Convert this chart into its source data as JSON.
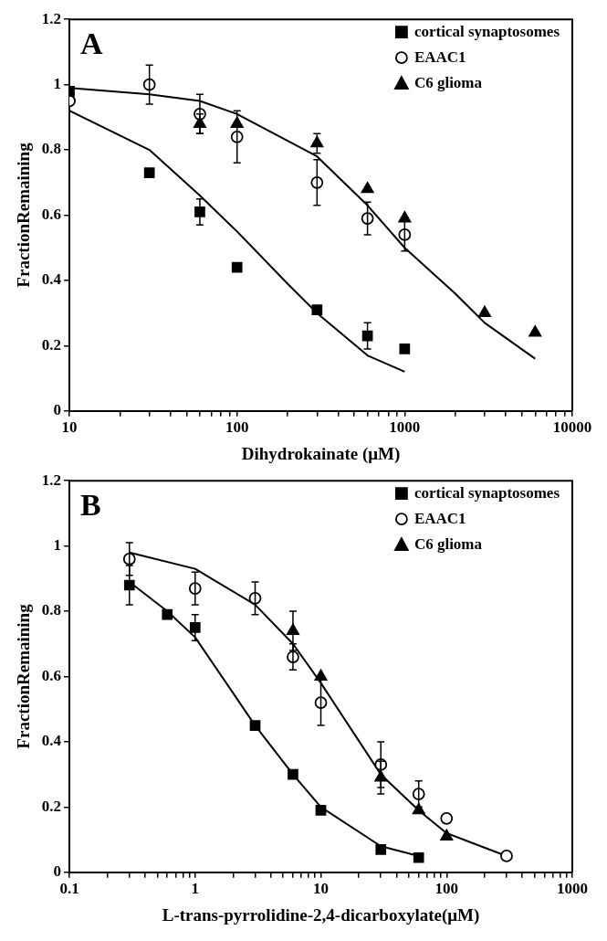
{
  "chart_data": [
    {
      "type": "scatter",
      "xlabel": "Dihydrokainate (μM)",
      "ylabel": "FractionRemaining",
      "annotations": [
        "A"
      ],
      "log": "x",
      "grid": false,
      "legend": "top right",
      "xlim": [
        10,
        10000
      ],
      "ylim": [
        0,
        1.2
      ],
      "xticks": [
        10,
        {
          "value": 20,
          "label": null
        },
        {
          "value": 30,
          "label": null
        },
        {
          "value": 40,
          "label": null
        },
        {
          "value": 50,
          "label": null
        },
        {
          "value": 60,
          "label": null
        },
        {
          "value": 70,
          "label": null
        },
        {
          "value": 80,
          "label": null
        },
        {
          "value": 90,
          "label": null
        },
        100,
        {
          "value": 200,
          "label": null
        },
        {
          "value": 300,
          "label": null
        },
        {
          "value": 400,
          "label": null
        },
        {
          "value": 500,
          "label": null
        },
        {
          "value": 600,
          "label": null
        },
        {
          "value": 700,
          "label": null
        },
        {
          "value": 800,
          "label": null
        },
        {
          "value": 900,
          "label": null
        },
        1000,
        {
          "value": 2000,
          "label": null
        },
        {
          "value": 3000,
          "label": null
        },
        {
          "value": 4000,
          "label": null
        },
        {
          "value": 5000,
          "label": null
        },
        {
          "value": 6000,
          "label": null
        },
        {
          "value": 7000,
          "label": null
        },
        {
          "value": 8000,
          "label": null
        },
        {
          "value": 9000,
          "label": null
        },
        10000
      ],
      "yticks": [
        0,
        0.2,
        0.4,
        0.6,
        0.8,
        1,
        1.2
      ],
      "series": [
        {
          "name": "cortical synaptosomes",
          "marker": "square",
          "color": "#000000",
          "x": [
            10,
            30,
            60,
            100,
            300,
            600,
            1000
          ],
          "values": [
            0.98,
            0.73,
            0.61,
            0.44,
            0.31,
            0.23,
            0.19
          ],
          "errors": [
            null,
            null,
            0.04,
            null,
            null,
            0.04,
            null
          ]
        },
        {
          "name": "EAAC1",
          "marker": "circle",
          "color": "#000000",
          "x": [
            10,
            30,
            60,
            100,
            300,
            600,
            1000
          ],
          "values": [
            0.95,
            1.0,
            0.91,
            0.84,
            0.7,
            0.59,
            0.54
          ],
          "errors": [
            null,
            0.06,
            0.06,
            0.08,
            0.07,
            0.05,
            0.05
          ]
        },
        {
          "name": "C6 glioma",
          "marker": "triangle",
          "color": "#000000",
          "x": [
            60,
            100,
            300,
            600,
            1000,
            3000,
            6000
          ],
          "values": [
            0.88,
            0.88,
            0.82,
            0.68,
            0.59,
            0.3,
            0.24
          ],
          "errors": [
            0.03,
            null,
            0.03,
            null,
            null,
            null,
            null
          ]
        },
        {
          "type": "line",
          "marker": "none",
          "color": "#000000",
          "x": [
            10,
            30,
            60,
            100,
            200,
            300,
            600,
            1000
          ],
          "values": [
            0.92,
            0.8,
            0.66,
            0.55,
            0.39,
            0.3,
            0.17,
            0.12
          ]
        },
        {
          "type": "line",
          "marker": "none",
          "color": "#000000",
          "x": [
            10,
            30,
            60,
            100,
            300,
            600,
            1000,
            2000,
            3000,
            6000
          ],
          "values": [
            0.99,
            0.97,
            0.95,
            0.91,
            0.78,
            0.63,
            0.5,
            0.36,
            0.27,
            0.16
          ]
        }
      ]
    },
    {
      "type": "scatter",
      "xlabel": "L-trans-pyrrolidine-2,4-dicarboxylate(μM)",
      "ylabel": "FractionRemaining",
      "annotations": [
        "B"
      ],
      "log": "x",
      "grid": false,
      "legend": "top right",
      "xlim": [
        0.1,
        1000
      ],
      "ylim": [
        0,
        1.2
      ],
      "xticks": [
        0.1,
        {
          "value": 0.2,
          "label": null
        },
        {
          "value": 0.3,
          "label": null
        },
        {
          "value": 0.4,
          "label": null
        },
        {
          "value": 0.5,
          "label": null
        },
        {
          "value": 0.6,
          "label": null
        },
        {
          "value": 0.7,
          "label": null
        },
        {
          "value": 0.8,
          "label": null
        },
        {
          "value": 0.9,
          "label": null
        },
        1,
        {
          "value": 2,
          "label": null
        },
        {
          "value": 3,
          "label": null
        },
        {
          "value": 4,
          "label": null
        },
        {
          "value": 5,
          "label": null
        },
        {
          "value": 6,
          "label": null
        },
        {
          "value": 7,
          "label": null
        },
        {
          "value": 8,
          "label": null
        },
        {
          "value": 9,
          "label": null
        },
        10,
        {
          "value": 20,
          "label": null
        },
        {
          "value": 30,
          "label": null
        },
        {
          "value": 40,
          "label": null
        },
        {
          "value": 50,
          "label": null
        },
        {
          "value": 60,
          "label": null
        },
        {
          "value": 70,
          "label": null
        },
        {
          "value": 80,
          "label": null
        },
        {
          "value": 90,
          "label": null
        },
        100,
        {
          "value": 200,
          "label": null
        },
        {
          "value": 300,
          "label": null
        },
        {
          "value": 400,
          "label": null
        },
        {
          "value": 500,
          "label": null
        },
        {
          "value": 600,
          "label": null
        },
        {
          "value": 700,
          "label": null
        },
        {
          "value": 800,
          "label": null
        },
        {
          "value": 900,
          "label": null
        },
        1000
      ],
      "yticks": [
        0,
        0.2,
        0.4,
        0.6,
        0.8,
        1,
        1.2
      ],
      "series": [
        {
          "name": "cortical synaptosomes",
          "marker": "square",
          "color": "#000000",
          "x": [
            0.3,
            0.6,
            1,
            3,
            6,
            10,
            30,
            60
          ],
          "values": [
            0.88,
            0.79,
            0.75,
            0.45,
            0.3,
            0.19,
            0.07,
            0.045
          ],
          "errors": [
            0.06,
            null,
            0.04,
            null,
            null,
            null,
            null,
            null
          ]
        },
        {
          "name": "EAAC1",
          "marker": "circle",
          "color": "#000000",
          "x": [
            0.3,
            1,
            3,
            6,
            10,
            30,
            60,
            100,
            300
          ],
          "values": [
            0.96,
            0.87,
            0.84,
            0.66,
            0.52,
            0.33,
            0.24,
            0.165,
            0.05
          ],
          "errors": [
            0.05,
            0.05,
            0.05,
            0.04,
            0.07,
            0.07,
            0.04,
            null,
            null
          ]
        },
        {
          "name": "C6 glioma",
          "marker": "triangle",
          "color": "#000000",
          "x": [
            6,
            10,
            30,
            60,
            100
          ],
          "values": [
            0.74,
            0.6,
            0.29,
            0.19,
            0.11
          ],
          "errors": [
            0.06,
            null,
            0.05,
            null,
            null
          ]
        },
        {
          "type": "line",
          "marker": "none",
          "color": "#000000",
          "x": [
            0.3,
            0.6,
            1,
            3,
            6,
            10,
            30,
            60
          ],
          "values": [
            0.89,
            0.8,
            0.72,
            0.45,
            0.3,
            0.2,
            0.08,
            0.05
          ]
        },
        {
          "type": "line",
          "marker": "none",
          "color": "#000000",
          "x": [
            0.3,
            1,
            3,
            6,
            10,
            30,
            60,
            100,
            300
          ],
          "values": [
            0.98,
            0.93,
            0.82,
            0.7,
            0.58,
            0.3,
            0.19,
            0.12,
            0.05
          ]
        }
      ]
    }
  ]
}
